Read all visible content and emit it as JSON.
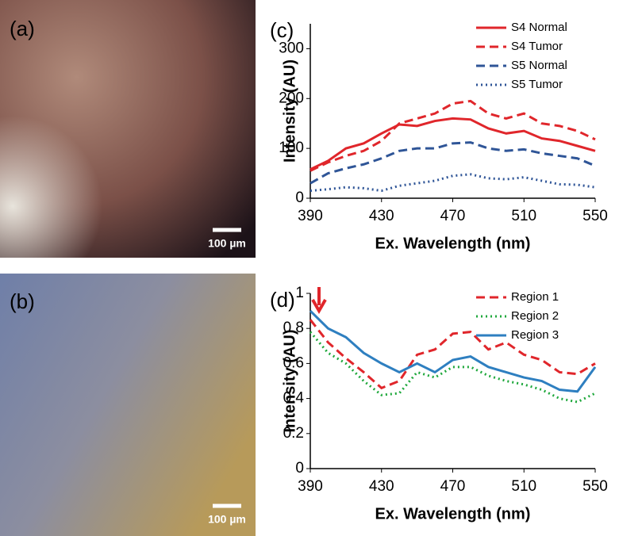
{
  "images": [
    {
      "label": "(a)",
      "scale_bar": "100 µm"
    },
    {
      "label": "(b)",
      "scale_bar": "100 µm"
    }
  ],
  "chart_data": [
    {
      "type": "line",
      "panel": "(c)",
      "xlabel": "Ex. Wavelength (nm)",
      "ylabel": "Intensity (AU)",
      "x": [
        390,
        400,
        410,
        420,
        430,
        440,
        450,
        460,
        470,
        480,
        490,
        500,
        510,
        520,
        530,
        540,
        550
      ],
      "xlim": [
        390,
        550
      ],
      "xticks": [
        390,
        430,
        470,
        510,
        550
      ],
      "ylim": [
        0,
        350
      ],
      "yticks": [
        0,
        100,
        200,
        300
      ],
      "legend": "upper right",
      "series": [
        {
          "name": "S4 Normal",
          "color": "#e0262b",
          "style": "solid",
          "values": [
            58,
            75,
            100,
            110,
            130,
            148,
            145,
            155,
            160,
            158,
            140,
            130,
            135,
            120,
            115,
            105,
            95
          ]
        },
        {
          "name": "S4 Tumor",
          "color": "#e0262b",
          "style": "dashed",
          "values": [
            55,
            72,
            85,
            95,
            115,
            150,
            160,
            170,
            190,
            195,
            170,
            160,
            170,
            150,
            145,
            135,
            118
          ]
        },
        {
          "name": "S5 Normal",
          "color": "#2f5597",
          "style": "dashed",
          "values": [
            30,
            50,
            60,
            68,
            80,
            95,
            100,
            100,
            110,
            112,
            100,
            95,
            98,
            90,
            85,
            80,
            65
          ]
        },
        {
          "name": "S5 Tumor",
          "color": "#2f5597",
          "style": "dotted",
          "values": [
            15,
            18,
            22,
            20,
            15,
            25,
            30,
            35,
            45,
            48,
            40,
            38,
            42,
            35,
            28,
            27,
            22
          ]
        }
      ]
    },
    {
      "type": "line",
      "panel": "(d)",
      "xlabel": "Ex. Wavelength (nm)",
      "ylabel": "Intensity (AU)",
      "x": [
        390,
        400,
        410,
        420,
        430,
        440,
        450,
        460,
        470,
        480,
        490,
        500,
        510,
        520,
        530,
        540,
        550
      ],
      "xlim": [
        390,
        550
      ],
      "xticks": [
        390,
        430,
        470,
        510,
        550
      ],
      "ylim": [
        0,
        1
      ],
      "yticks": [
        0,
        0.2,
        0.4,
        0.6,
        0.8,
        1
      ],
      "legend": "upper right",
      "series": [
        {
          "name": "Region 1",
          "color": "#e0262b",
          "style": "dashed",
          "values": [
            0.85,
            0.72,
            0.63,
            0.55,
            0.46,
            0.5,
            0.65,
            0.68,
            0.77,
            0.78,
            0.68,
            0.72,
            0.65,
            0.62,
            0.55,
            0.54,
            0.6
          ]
        },
        {
          "name": "Region 2",
          "color": "#1fa83c",
          "style": "dotted",
          "values": [
            0.78,
            0.66,
            0.6,
            0.5,
            0.42,
            0.43,
            0.55,
            0.52,
            0.58,
            0.58,
            0.53,
            0.5,
            0.48,
            0.45,
            0.4,
            0.38,
            0.43
          ]
        },
        {
          "name": "Region 3",
          "color": "#2e7fc0",
          "style": "solid",
          "values": [
            0.9,
            0.8,
            0.75,
            0.66,
            0.6,
            0.55,
            0.6,
            0.55,
            0.62,
            0.64,
            0.58,
            0.55,
            0.52,
            0.5,
            0.45,
            0.44,
            0.58
          ]
        }
      ]
    }
  ]
}
